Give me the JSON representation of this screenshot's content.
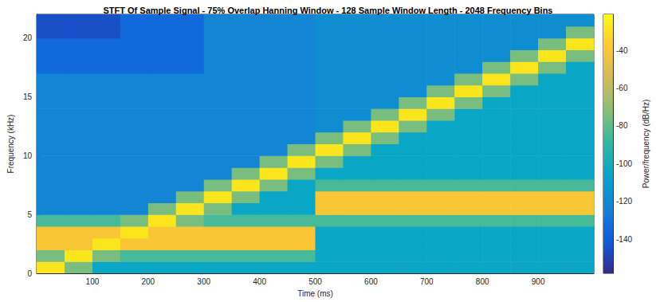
{
  "chart_data": {
    "type": "heatmap",
    "title": "STFT Of Sample Signal - 75% Overlap Hanning Window - 128 Sample Window Length - 2048 Frequency Bins",
    "x_label": "Time (ms)",
    "y_label": "Frequency (kHz)",
    "x": [
      25,
      75,
      125,
      175,
      225,
      275,
      325,
      375,
      425,
      475,
      525,
      575,
      625,
      675,
      725,
      775,
      825,
      875,
      925,
      975
    ],
    "y": [
      0.5,
      1.5,
      2.5,
      3.5,
      4.5,
      5.5,
      6.5,
      7.5,
      8.5,
      9.5,
      10.5,
      11.5,
      12.5,
      13.5,
      14.5,
      15.5,
      16.5,
      17.5,
      18.5,
      19.5,
      20.5,
      21.5
    ],
    "values": [
      [
        -28,
        -75,
        -105,
        -105,
        -105,
        -105,
        -105,
        -105,
        -105,
        -105,
        -105,
        -105,
        -105,
        -105,
        -105,
        -105,
        -105,
        -105,
        -105,
        -105
      ],
      [
        -75,
        -28,
        -75,
        -85,
        -85,
        -85,
        -85,
        -85,
        -85,
        -85,
        -105,
        -105,
        -105,
        -105,
        -105,
        -105,
        -105,
        -105,
        -105,
        -105
      ],
      [
        -40,
        -40,
        -28,
        -40,
        -40,
        -40,
        -40,
        -40,
        -40,
        -40,
        -105,
        -105,
        -105,
        -105,
        -105,
        -105,
        -105,
        -105,
        -105,
        -105
      ],
      [
        -40,
        -40,
        -40,
        -28,
        -40,
        -40,
        -40,
        -40,
        -40,
        -40,
        -105,
        -105,
        -105,
        -105,
        -105,
        -105,
        -105,
        -105,
        -105,
        -105
      ],
      [
        -85,
        -85,
        -85,
        -75,
        -28,
        -75,
        -85,
        -85,
        -85,
        -85,
        -85,
        -85,
        -85,
        -85,
        -85,
        -85,
        -85,
        -85,
        -85,
        -85
      ],
      [
        -122,
        -122,
        -122,
        -122,
        -75,
        -28,
        -75,
        -105,
        -105,
        -105,
        -40,
        -40,
        -40,
        -40,
        -40,
        -40,
        -40,
        -40,
        -40,
        -40
      ],
      [
        -122,
        -122,
        -122,
        -122,
        -122,
        -75,
        -28,
        -75,
        -105,
        -105,
        -40,
        -40,
        -40,
        -40,
        -40,
        -40,
        -40,
        -40,
        -40,
        -40
      ],
      [
        -122,
        -122,
        -122,
        -122,
        -122,
        -122,
        -75,
        -28,
        -75,
        -105,
        -85,
        -85,
        -85,
        -85,
        -85,
        -85,
        -85,
        -85,
        -85,
        -85
      ],
      [
        -122,
        -122,
        -122,
        -122,
        -122,
        -122,
        -122,
        -75,
        -28,
        -75,
        -105,
        -105,
        -105,
        -105,
        -105,
        -105,
        -105,
        -105,
        -105,
        -105
      ],
      [
        -122,
        -122,
        -122,
        -122,
        -122,
        -122,
        -122,
        -122,
        -75,
        -28,
        -75,
        -105,
        -105,
        -105,
        -105,
        -105,
        -105,
        -105,
        -105,
        -105
      ],
      [
        -122,
        -122,
        -122,
        -122,
        -122,
        -122,
        -122,
        -122,
        -122,
        -75,
        -28,
        -75,
        -105,
        -105,
        -105,
        -105,
        -105,
        -105,
        -105,
        -105
      ],
      [
        -122,
        -122,
        -122,
        -122,
        -122,
        -122,
        -122,
        -122,
        -122,
        -122,
        -75,
        -28,
        -75,
        -105,
        -105,
        -105,
        -105,
        -105,
        -105,
        -105
      ],
      [
        -122,
        -122,
        -122,
        -122,
        -122,
        -122,
        -122,
        -122,
        -122,
        -122,
        -118,
        -75,
        -28,
        -75,
        -105,
        -105,
        -105,
        -105,
        -105,
        -105
      ],
      [
        -122,
        -122,
        -122,
        -122,
        -122,
        -122,
        -122,
        -122,
        -122,
        -122,
        -118,
        -118,
        -75,
        -28,
        -75,
        -105,
        -105,
        -105,
        -105,
        -105
      ],
      [
        -122,
        -122,
        -122,
        -122,
        -122,
        -122,
        -122,
        -122,
        -122,
        -122,
        -118,
        -118,
        -118,
        -75,
        -28,
        -75,
        -105,
        -105,
        -105,
        -105
      ],
      [
        -122,
        -122,
        -122,
        -122,
        -122,
        -122,
        -122,
        -122,
        -122,
        -122,
        -118,
        -118,
        -118,
        -118,
        -75,
        -28,
        -75,
        -105,
        -105,
        -105
      ],
      [
        -122,
        -122,
        -122,
        -122,
        -122,
        -122,
        -122,
        -122,
        -122,
        -122,
        -118,
        -118,
        -118,
        -118,
        -118,
        -75,
        -28,
        -75,
        -105,
        -105
      ],
      [
        -135,
        -135,
        -135,
        -135,
        -135,
        -135,
        -122,
        -122,
        -122,
        -122,
        -118,
        -118,
        -118,
        -118,
        -118,
        -118,
        -75,
        -28,
        -75,
        -105
      ],
      [
        -135,
        -135,
        -135,
        -135,
        -135,
        -135,
        -122,
        -122,
        -122,
        -122,
        -118,
        -118,
        -118,
        -118,
        -118,
        -118,
        -118,
        -75,
        -28,
        -75
      ],
      [
        -135,
        -135,
        -135,
        -135,
        -135,
        -135,
        -122,
        -122,
        -122,
        -122,
        -118,
        -118,
        -118,
        -118,
        -118,
        -118,
        -118,
        -118,
        -75,
        -28
      ],
      [
        -145,
        -145,
        -145,
        -135,
        -135,
        -135,
        -122,
        -122,
        -122,
        -122,
        -118,
        -118,
        -118,
        -118,
        -118,
        -118,
        -118,
        -118,
        -118,
        -75
      ],
      [
        -145,
        -145,
        -145,
        -135,
        -135,
        -135,
        -122,
        -122,
        -122,
        -122,
        -118,
        -118,
        -118,
        -118,
        -118,
        -118,
        -118,
        -118,
        -118,
        -118
      ]
    ],
    "xlim": [
      0,
      1000
    ],
    "xticks": [
      100,
      200,
      300,
      400,
      500,
      600,
      700,
      800,
      900
    ],
    "ylim": [
      0,
      22
    ],
    "yticks": [
      0,
      5,
      10,
      15,
      20
    ],
    "colorbar": {
      "label": "Power/frequency (dB/Hz)",
      "range": [
        -158,
        -21
      ],
      "ticks": [
        -140,
        -120,
        -100,
        -80,
        -60,
        -40
      ]
    },
    "grid": false
  }
}
